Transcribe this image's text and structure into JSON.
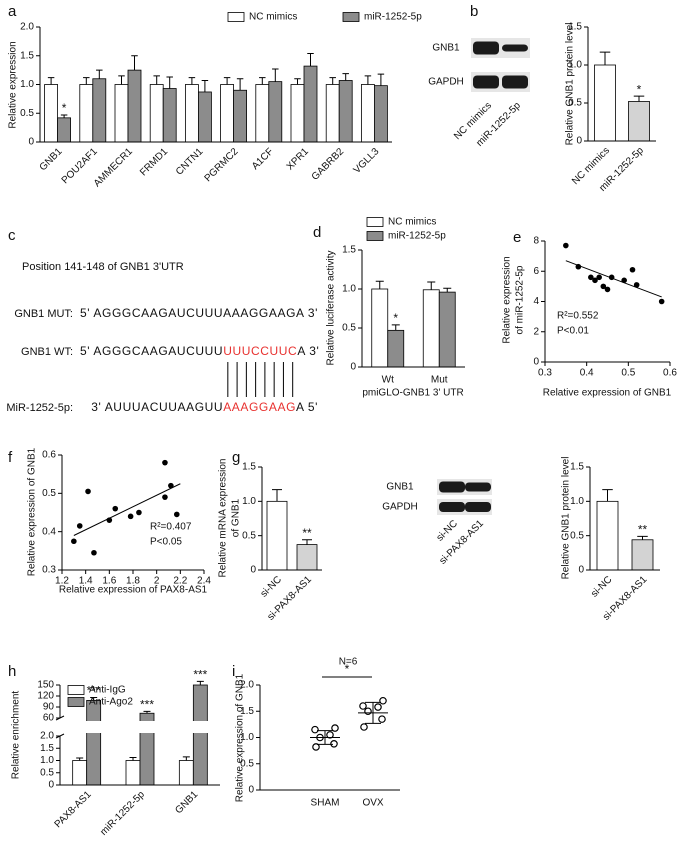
{
  "chart_data": [
    {
      "type": "bar",
      "panel_label": "a",
      "ylabel": "Relative expression",
      "categories": [
        "GNB1",
        "POU2AF1",
        "AMMECR1",
        "FRMD1",
        "CNTN1",
        "PGRMC2",
        "A1CF",
        "XPR1",
        "GABRB2",
        "VGLL3"
      ],
      "series": [
        {
          "name": "NC mimics",
          "color": "#ffffff",
          "values": [
            1,
            1,
            1,
            1,
            1,
            1,
            1,
            1,
            1,
            1
          ],
          "errors": [
            0.12,
            0.12,
            0.15,
            0.15,
            0.12,
            0.12,
            0.12,
            0.1,
            0.12,
            0.15
          ]
        },
        {
          "name": "miR-1252-5p",
          "color": "#8c8c8c",
          "values": [
            0.42,
            1.1,
            1.25,
            0.93,
            0.87,
            0.9,
            1.05,
            1.32,
            1.07,
            0.98
          ],
          "errors": [
            0.05,
            0.15,
            0.25,
            0.2,
            0.2,
            0.2,
            0.22,
            0.22,
            0.12,
            0.2
          ]
        }
      ],
      "ylim": [
        0,
        2
      ],
      "yticks": [
        0,
        0.5,
        {
          "value": 1,
          "label": "1.0"
        },
        1.5,
        {
          "value": 2,
          "label": "2.0"
        }
      ],
      "annotations": [
        "*"
      ]
    },
    {
      "type": "bar",
      "panel_label": "b",
      "ylabel": "Relative GNB1 protein level",
      "categories": [
        "NC mimics",
        "miR-1252-5p"
      ],
      "values": [
        1,
        0.52
      ],
      "errors": [
        0.17,
        0.07
      ],
      "colors": [
        "#ffffff",
        "#d3d3d3"
      ],
      "ylim": [
        0,
        1.5
      ],
      "yticks": [
        0,
        0.5,
        {
          "value": 1,
          "label": "1.0"
        },
        1.5
      ],
      "annotations": [
        "*"
      ],
      "blot": {
        "rows": [
          "GNB1",
          "GAPDH"
        ],
        "lanes": [
          "NC mimics",
          "miR-1252-5p"
        ]
      }
    },
    {
      "type": "bar",
      "panel_label": "d",
      "ylabel": "Relative luciferase activity",
      "xlabel": "pmiGLO-GNB1 3' UTR",
      "categories": [
        "Wt",
        "Mut"
      ],
      "series": [
        {
          "name": "NC mimics",
          "color": "#ffffff",
          "values": [
            1,
            0.99
          ],
          "errors": [
            0.1,
            0.1
          ]
        },
        {
          "name": "miR-1252-5p",
          "color": "#8c8c8c",
          "values": [
            0.47,
            0.96
          ],
          "errors": [
            0.07,
            0.05
          ]
        }
      ],
      "ylim": [
        0,
        1.5
      ],
      "yticks": [
        0,
        0.5,
        {
          "value": 1,
          "label": "1.0"
        },
        1.5
      ],
      "annotations": [
        "*"
      ]
    },
    {
      "type": "scatter",
      "panel_label": "e",
      "xlabel": "Relative expression of GNB1",
      "ylabel": [
        "Relative expression",
        "of miR-1252-5p"
      ],
      "x": [
        0.35,
        0.38,
        0.41,
        0.42,
        0.43,
        0.44,
        0.45,
        0.46,
        0.49,
        0.51,
        0.52,
        0.58
      ],
      "values": [
        7.7,
        6.3,
        5.6,
        5.4,
        5.6,
        5.0,
        4.8,
        5.6,
        5.4,
        6.1,
        5.1,
        4.0
      ],
      "trendline": {
        "x": [
          0.35,
          0.58
        ],
        "y": [
          6.7,
          4.3
        ]
      },
      "color": "#000000",
      "xlim": [
        0.3,
        0.6
      ],
      "xticks": [
        0.3,
        0.4,
        0.5,
        0.6
      ],
      "ylim": [
        0,
        8
      ],
      "yticks": [
        0,
        2,
        4,
        6,
        8
      ],
      "annotations": [
        "R²=0.552",
        "P<0.01"
      ]
    },
    {
      "type": "scatter",
      "panel_label": "f",
      "xlabel": "Relative expression of PAX8-AS1",
      "ylabel": "Relative expression of GNB1",
      "x": [
        1.3,
        1.35,
        1.42,
        1.47,
        1.6,
        1.65,
        1.78,
        1.85,
        2.07,
        2.07,
        2.12,
        2.17
      ],
      "values": [
        0.375,
        0.415,
        0.505,
        0.345,
        0.43,
        0.46,
        0.44,
        0.45,
        0.58,
        0.49,
        0.52,
        0.445
      ],
      "trendline": {
        "x": [
          1.3,
          2.2
        ],
        "y": [
          0.39,
          0.525
        ]
      },
      "color": "#000000",
      "xlim": [
        1.2,
        2.4
      ],
      "xticks": [
        1.2,
        1.4,
        1.6,
        1.8,
        2,
        2.2,
        2.4
      ],
      "ylim": [
        0.3,
        0.6
      ],
      "yticks": [
        0.3,
        0.4,
        0.5,
        0.6
      ],
      "annotations": [
        "R²=0.407",
        "P<0.05"
      ]
    },
    {
      "type": "bar",
      "panel_label": "g",
      "ylabel": [
        "Relative mRNA expression",
        "of GNB1"
      ],
      "categories": [
        "si-NC",
        "si-PAX8-AS1"
      ],
      "values": [
        1,
        0.37
      ],
      "errors": [
        0.17,
        0.07
      ],
      "colors": [
        "#ffffff",
        "#d3d3d3"
      ],
      "ylim": [
        0,
        1.5
      ],
      "yticks": [
        0,
        0.5,
        {
          "value": 1,
          "label": "1.0"
        },
        1.5
      ],
      "annotations": [
        "**"
      ],
      "blot": {
        "rows": [
          "GNB1",
          "GAPDH"
        ],
        "lanes": [
          "si-NC",
          "si-PAX8-AS1"
        ]
      }
    },
    {
      "type": "bar",
      "ylabel": "Relative GNB1 protein level",
      "categories": [
        "si-NC",
        "si-PAX8-AS1"
      ],
      "values": [
        1,
        0.44
      ],
      "errors": [
        0.17,
        0.05
      ],
      "colors": [
        "#ffffff",
        "#d3d3d3"
      ],
      "ylim": [
        0,
        1.5
      ],
      "yticks": [
        0,
        0.5,
        {
          "value": 1,
          "label": "1.0"
        },
        1.5
      ],
      "annotations": [
        "**"
      ]
    },
    {
      "type": "bar",
      "panel_label": "h",
      "ylabel": "Relative enrichment",
      "categories": [
        "PAX8-AS1",
        "miR-1252-5p",
        "GNB1"
      ],
      "series": [
        {
          "name": "Anti-IgG",
          "color": "#ffffff",
          "values": [
            1,
            1,
            1
          ],
          "errors": [
            0.1,
            0.12,
            0.15
          ]
        },
        {
          "name": "Anti-Ago2",
          "color": "#8c8c8c",
          "values": [
            108,
            73,
            150
          ],
          "errors": [
            8,
            5,
            10
          ]
        }
      ],
      "ylim": [
        0,
        150
      ],
      "axis_break": [
        2,
        60
      ],
      "yticks": [
        0,
        0.5,
        {
          "value": 1,
          "label": "1.0"
        },
        1.5,
        {
          "value": 2,
          "label": "2.0"
        },
        60,
        90,
        120,
        150
      ],
      "annotations": [
        "***",
        "***",
        "***"
      ]
    },
    {
      "type": "dot",
      "panel_label": "i",
      "title": "N=6",
      "ylabel": "Relative expression of GNB1",
      "categories": [
        "SHAM",
        "OVX"
      ],
      "values": [
        [
          0.82,
          0.88,
          1.0,
          1.05,
          1.15,
          1.18
        ],
        [
          1.2,
          1.35,
          1.5,
          1.58,
          1.6,
          1.7
        ]
      ],
      "means": [
        1.0,
        1.47
      ],
      "sds": [
        0.13,
        0.2
      ],
      "ylim": [
        0,
        2
      ],
      "yticks": [
        0,
        0.5,
        {
          "value": 1,
          "label": "1.0"
        },
        1.5,
        {
          "value": 2,
          "label": "2.0"
        }
      ],
      "annotations": [
        "*"
      ]
    }
  ],
  "sequence_panel": {
    "panel_label": "c",
    "title": "Position 141-148 of GNB1 3'UTR",
    "highlight_color": "#e8312f",
    "rows": [
      {
        "name": "GNB1 MUT:",
        "sequence": [
          "5' AGGGCAAGAUCUUUAAAGGAAGA 3'"
        ]
      },
      {
        "name": "GNB1 WT:",
        "sequence": [
          "5' AGGGCAAGAUCUUU",
          "UUUCCUUC",
          "A 3'"
        ]
      },
      {
        "name": "MiR-1252-5p:",
        "sequence": [
          "3' AUUUACUUAAGUU",
          "AAAGGAAG",
          "A 5'"
        ]
      }
    ]
  }
}
